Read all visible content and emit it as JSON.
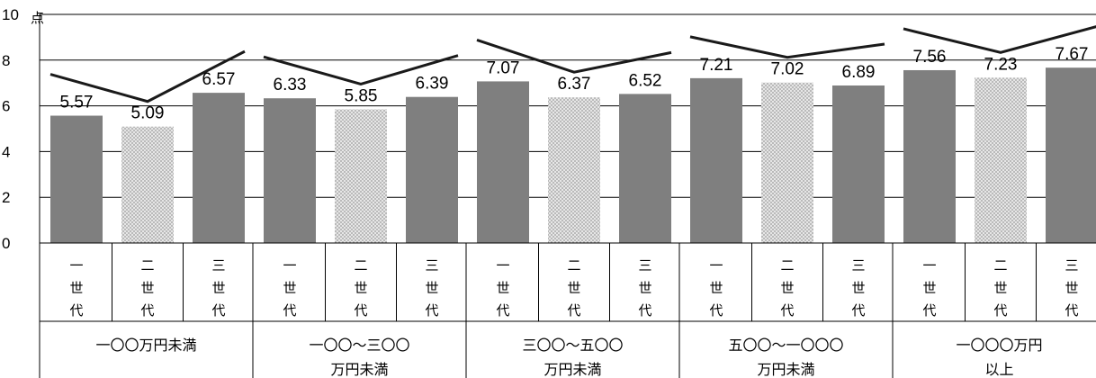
{
  "chart_data": {
    "type": "bar",
    "unit": "点",
    "ylim": [
      0,
      10
    ],
    "yticks": [
      "0",
      "2",
      "4",
      "6",
      "8",
      "10"
    ],
    "grid": true,
    "groups": [
      {
        "label_lines": [
          "一〇〇万円未満"
        ],
        "bars": [
          {
            "category": "一世代",
            "value": 5.57,
            "label": "5.57",
            "style": "solid"
          },
          {
            "category": "二世代",
            "value": 5.09,
            "label": "5.09",
            "style": "dotted"
          },
          {
            "category": "三世代",
            "value": 6.57,
            "label": "6.57",
            "style": "solid"
          }
        ]
      },
      {
        "label_lines": [
          "一〇〇～三〇〇",
          "万円未満"
        ],
        "bars": [
          {
            "category": "一世代",
            "value": 6.33,
            "label": "6.33",
            "style": "solid"
          },
          {
            "category": "二世代",
            "value": 5.85,
            "label": "5.85",
            "style": "dotted"
          },
          {
            "category": "三世代",
            "value": 6.39,
            "label": "6.39",
            "style": "solid"
          }
        ]
      },
      {
        "label_lines": [
          "三〇〇～五〇〇",
          "万円未満"
        ],
        "bars": [
          {
            "category": "一世代",
            "value": 7.07,
            "label": "7.07",
            "style": "solid"
          },
          {
            "category": "二世代",
            "value": 6.37,
            "label": "6.37",
            "style": "dotted"
          },
          {
            "category": "三世代",
            "value": 6.52,
            "label": "6.52",
            "style": "solid"
          }
        ]
      },
      {
        "label_lines": [
          "五〇〇～一〇〇〇",
          "万円未満"
        ],
        "bars": [
          {
            "category": "一世代",
            "value": 7.21,
            "label": "7.21",
            "style": "solid"
          },
          {
            "category": "二世代",
            "value": 7.02,
            "label": "7.02",
            "style": "dotted"
          },
          {
            "category": "三世代",
            "value": 6.89,
            "label": "6.89",
            "style": "solid"
          }
        ]
      },
      {
        "label_lines": [
          "一〇〇〇万円",
          "以上"
        ],
        "bars": [
          {
            "category": "一世代",
            "value": 7.56,
            "label": "7.56",
            "style": "solid"
          },
          {
            "category": "二世代",
            "value": 7.23,
            "label": "7.23",
            "style": "dotted"
          },
          {
            "category": "三世代",
            "value": 7.67,
            "label": "7.67",
            "style": "solid"
          }
        ]
      }
    ],
    "colors": {
      "solid": "#7f7f7f",
      "dotted": "#d4d4d4",
      "line": "#1a1a1a",
      "grid": "#000000"
    }
  }
}
